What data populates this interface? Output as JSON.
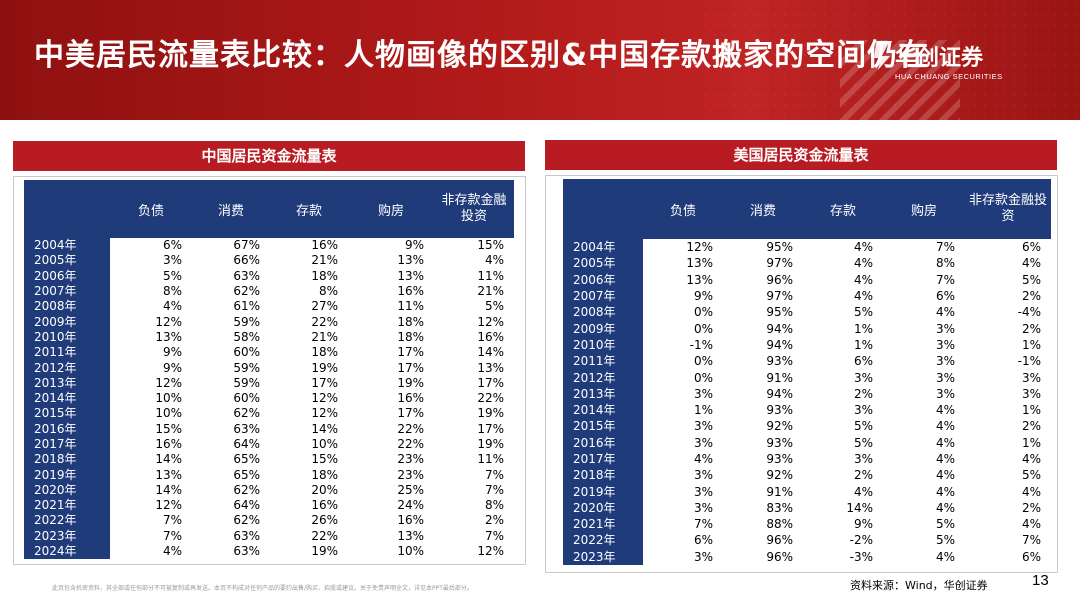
{
  "slide": {
    "title": "中美居民流量表比较：人物画像的区别&中国存款搬家的空间仍在",
    "logo_cn": "华创证券",
    "logo_en": "HUA CHUANG SECURITIES",
    "page_number": "13",
    "source": "资料来源：Wind，华创证券",
    "disclaimer": "此页包含机密资料，其全部或任何部分不可被复制或再发送。本页不构成对任何产品的要约出售/购买、招揽或建议。关于免责声明全文，详见本PPT最后部分。"
  },
  "colors": {
    "banner": "#b21a1a",
    "panel_header": "#b81c22",
    "table_header": "#1f3b7a"
  },
  "china": {
    "header": "中国居民资金流量表",
    "columns": [
      "负债",
      "消费",
      "存款",
      "购房",
      "非存款金融投资"
    ],
    "rows": [
      [
        "2004年",
        "6%",
        "67%",
        "16%",
        "9%",
        "15%"
      ],
      [
        "2005年",
        "3%",
        "66%",
        "21%",
        "13%",
        "4%"
      ],
      [
        "2006年",
        "5%",
        "63%",
        "18%",
        "13%",
        "11%"
      ],
      [
        "2007年",
        "8%",
        "62%",
        "8%",
        "16%",
        "21%"
      ],
      [
        "2008年",
        "4%",
        "61%",
        "27%",
        "11%",
        "5%"
      ],
      [
        "2009年",
        "12%",
        "59%",
        "22%",
        "18%",
        "12%"
      ],
      [
        "2010年",
        "13%",
        "58%",
        "21%",
        "18%",
        "16%"
      ],
      [
        "2011年",
        "9%",
        "60%",
        "18%",
        "17%",
        "14%"
      ],
      [
        "2012年",
        "9%",
        "59%",
        "19%",
        "17%",
        "13%"
      ],
      [
        "2013年",
        "12%",
        "59%",
        "17%",
        "19%",
        "17%"
      ],
      [
        "2014年",
        "10%",
        "60%",
        "12%",
        "16%",
        "22%"
      ],
      [
        "2015年",
        "10%",
        "62%",
        "12%",
        "17%",
        "19%"
      ],
      [
        "2016年",
        "15%",
        "63%",
        "14%",
        "22%",
        "17%"
      ],
      [
        "2017年",
        "16%",
        "64%",
        "10%",
        "22%",
        "19%"
      ],
      [
        "2018年",
        "14%",
        "65%",
        "15%",
        "23%",
        "11%"
      ],
      [
        "2019年",
        "13%",
        "65%",
        "18%",
        "23%",
        "7%"
      ],
      [
        "2020年",
        "14%",
        "62%",
        "20%",
        "25%",
        "7%"
      ],
      [
        "2021年",
        "12%",
        "64%",
        "16%",
        "24%",
        "8%"
      ],
      [
        "2022年",
        "7%",
        "62%",
        "26%",
        "16%",
        "2%"
      ],
      [
        "2023年",
        "7%",
        "63%",
        "22%",
        "13%",
        "7%"
      ],
      [
        "2024年",
        "4%",
        "63%",
        "19%",
        "10%",
        "12%"
      ]
    ]
  },
  "us": {
    "header": "美国居民资金流量表",
    "columns": [
      "负债",
      "消费",
      "存款",
      "购房",
      "非存款金融投资"
    ],
    "rows": [
      [
        "2004年",
        "12%",
        "95%",
        "4%",
        "7%",
        "6%"
      ],
      [
        "2005年",
        "13%",
        "97%",
        "4%",
        "8%",
        "4%"
      ],
      [
        "2006年",
        "13%",
        "96%",
        "4%",
        "7%",
        "5%"
      ],
      [
        "2007年",
        "9%",
        "97%",
        "4%",
        "6%",
        "2%"
      ],
      [
        "2008年",
        "0%",
        "95%",
        "5%",
        "4%",
        "-4%"
      ],
      [
        "2009年",
        "0%",
        "94%",
        "1%",
        "3%",
        "2%"
      ],
      [
        "2010年",
        "-1%",
        "94%",
        "1%",
        "3%",
        "1%"
      ],
      [
        "2011年",
        "0%",
        "93%",
        "6%",
        "3%",
        "-1%"
      ],
      [
        "2012年",
        "0%",
        "91%",
        "3%",
        "3%",
        "3%"
      ],
      [
        "2013年",
        "3%",
        "94%",
        "2%",
        "3%",
        "3%"
      ],
      [
        "2014年",
        "1%",
        "93%",
        "3%",
        "4%",
        "1%"
      ],
      [
        "2015年",
        "3%",
        "92%",
        "5%",
        "4%",
        "2%"
      ],
      [
        "2016年",
        "3%",
        "93%",
        "5%",
        "4%",
        "1%"
      ],
      [
        "2017年",
        "4%",
        "93%",
        "3%",
        "4%",
        "4%"
      ],
      [
        "2018年",
        "3%",
        "92%",
        "2%",
        "4%",
        "5%"
      ],
      [
        "2019年",
        "3%",
        "91%",
        "4%",
        "4%",
        "4%"
      ],
      [
        "2020年",
        "3%",
        "83%",
        "14%",
        "4%",
        "2%"
      ],
      [
        "2021年",
        "7%",
        "88%",
        "9%",
        "5%",
        "4%"
      ],
      [
        "2022年",
        "6%",
        "96%",
        "-2%",
        "5%",
        "7%"
      ],
      [
        "2023年",
        "3%",
        "96%",
        "-3%",
        "4%",
        "6%"
      ]
    ]
  }
}
